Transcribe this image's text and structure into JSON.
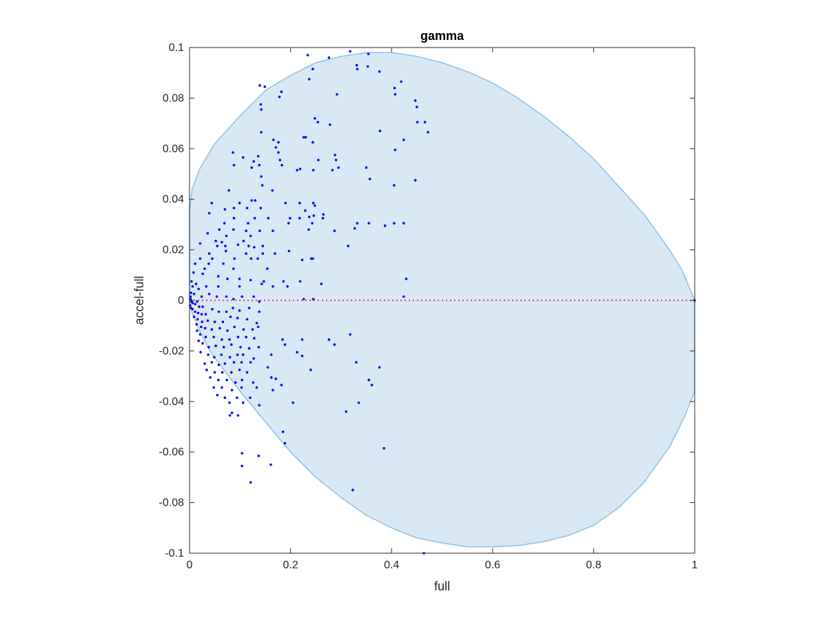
{
  "chart_data": {
    "type": "scatter",
    "title": "gamma",
    "xlabel": "full",
    "ylabel": "accel-full",
    "xlim": [
      0,
      1
    ],
    "ylim": [
      -0.1,
      0.1
    ],
    "x_ticks": [
      "0",
      "0.2",
      "0.4",
      "0.6",
      "0.8",
      "1"
    ],
    "x_tick_values": [
      0,
      0.2,
      0.4,
      0.6,
      0.8,
      1
    ],
    "y_ticks": [
      "0.1",
      "0.08",
      "0.06",
      "0.04",
      "0.02",
      "0",
      "-0.02",
      "-0.04",
      "-0.06",
      "-0.08",
      "-0.1"
    ],
    "y_tick_values": [
      0.1,
      0.08,
      0.06,
      0.04,
      0.02,
      0,
      -0.02,
      -0.04,
      -0.06,
      -0.08,
      -0.1
    ],
    "grid": false,
    "colors": {
      "points": "#0000ff",
      "region_fill": "#d8e8f4",
      "region_edge": "#8cc0e0",
      "reference_line": "#ff0000",
      "axes": "#262626"
    },
    "reference_line": {
      "y": 0,
      "style": "dotted"
    },
    "shaded_region": {
      "boundary_top": [
        [
          0,
          0.035
        ],
        [
          0.005,
          0.044
        ],
        [
          0.02,
          0.052
        ],
        [
          0.05,
          0.062
        ],
        [
          0.1,
          0.073
        ],
        [
          0.15,
          0.083
        ],
        [
          0.2,
          0.089
        ],
        [
          0.25,
          0.094
        ],
        [
          0.3,
          0.0965
        ],
        [
          0.35,
          0.098
        ],
        [
          0.4,
          0.098
        ],
        [
          0.45,
          0.0965
        ],
        [
          0.5,
          0.094
        ],
        [
          0.55,
          0.0905
        ],
        [
          0.6,
          0.086
        ],
        [
          0.65,
          0.08
        ],
        [
          0.7,
          0.073
        ],
        [
          0.75,
          0.065
        ],
        [
          0.8,
          0.056
        ],
        [
          0.85,
          0.045
        ],
        [
          0.9,
          0.034
        ],
        [
          0.95,
          0.02
        ],
        [
          0.975,
          0.012
        ],
        [
          1.0,
          0.0
        ]
      ],
      "boundary_bottom": [
        [
          1.0,
          0.0
        ],
        [
          1.0,
          -0.036
        ],
        [
          0.98,
          -0.046
        ],
        [
          0.95,
          -0.058
        ],
        [
          0.9,
          -0.072
        ],
        [
          0.85,
          -0.082
        ],
        [
          0.8,
          -0.089
        ],
        [
          0.75,
          -0.093
        ],
        [
          0.7,
          -0.0955
        ],
        [
          0.65,
          -0.097
        ],
        [
          0.6,
          -0.0975
        ],
        [
          0.55,
          -0.0975
        ],
        [
          0.5,
          -0.096
        ],
        [
          0.45,
          -0.094
        ],
        [
          0.4,
          -0.09
        ],
        [
          0.35,
          -0.085
        ],
        [
          0.3,
          -0.078
        ],
        [
          0.25,
          -0.07
        ],
        [
          0.2,
          -0.06
        ],
        [
          0.15,
          -0.048
        ],
        [
          0.1,
          -0.036
        ],
        [
          0.07,
          -0.028
        ],
        [
          0.04,
          -0.02
        ],
        [
          0.02,
          -0.012
        ],
        [
          0.005,
          -0.005
        ],
        [
          0,
          0.0
        ]
      ]
    },
    "points": [
      [
        0.234,
        0.097
      ],
      [
        0.276,
        0.096
      ],
      [
        0.318,
        0.0985
      ],
      [
        0.354,
        0.0975
      ],
      [
        0.331,
        0.093
      ],
      [
        0.332,
        0.0915
      ],
      [
        0.353,
        0.0925
      ],
      [
        0.244,
        0.0915
      ],
      [
        0.237,
        0.0875
      ],
      [
        0.376,
        0.0905
      ],
      [
        0.419,
        0.0865
      ],
      [
        0.406,
        0.084
      ],
      [
        0.407,
        0.0815
      ],
      [
        0.447,
        0.079
      ],
      [
        0.45,
        0.0765
      ],
      [
        0.139,
        0.085
      ],
      [
        0.149,
        0.0845
      ],
      [
        0.182,
        0.0825
      ],
      [
        0.178,
        0.0805
      ],
      [
        0.292,
        0.0815
      ],
      [
        0.141,
        0.0775
      ],
      [
        0.142,
        0.0755
      ],
      [
        0.248,
        0.072
      ],
      [
        0.254,
        0.0705
      ],
      [
        0.278,
        0.0695
      ],
      [
        0.466,
        0.0705
      ],
      [
        0.451,
        0.0705
      ],
      [
        0.472,
        0.0665
      ],
      [
        0.377,
        0.067
      ],
      [
        0.142,
        0.0665
      ],
      [
        0.226,
        0.0645
      ],
      [
        0.23,
        0.0645
      ],
      [
        0.424,
        0.0635
      ],
      [
        0.166,
        0.0635
      ],
      [
        0.171,
        0.0605
      ],
      [
        0.176,
        0.0625
      ],
      [
        0.244,
        0.0625
      ],
      [
        0.176,
        0.0585
      ],
      [
        0.179,
        0.0555
      ],
      [
        0.086,
        0.0585
      ],
      [
        0.136,
        0.057
      ],
      [
        0.106,
        0.0565
      ],
      [
        0.288,
        0.0575
      ],
      [
        0.29,
        0.0555
      ],
      [
        0.255,
        0.0555
      ],
      [
        0.407,
        0.0595
      ],
      [
        0.127,
        0.055
      ],
      [
        0.123,
        0.0525
      ],
      [
        0.088,
        0.0535
      ],
      [
        0.138,
        0.0535
      ],
      [
        0.183,
        0.0535
      ],
      [
        0.213,
        0.0515
      ],
      [
        0.219,
        0.052
      ],
      [
        0.245,
        0.0515
      ],
      [
        0.283,
        0.0515
      ],
      [
        0.295,
        0.0525
      ],
      [
        0.35,
        0.0525
      ],
      [
        0.357,
        0.048
      ],
      [
        0.142,
        0.049
      ],
      [
        0.144,
        0.0455
      ],
      [
        0.405,
        0.0455
      ],
      [
        0.447,
        0.0475
      ],
      [
        0.078,
        0.0435
      ],
      [
        0.164,
        0.0435
      ],
      [
        0.044,
        0.0385
      ],
      [
        0.099,
        0.0385
      ],
      [
        0.123,
        0.0395
      ],
      [
        0.13,
        0.0395
      ],
      [
        0.19,
        0.0385
      ],
      [
        0.218,
        0.0385
      ],
      [
        0.245,
        0.0385
      ],
      [
        0.248,
        0.0375
      ],
      [
        0.229,
        0.0355
      ],
      [
        0.07,
        0.036
      ],
      [
        0.088,
        0.0365
      ],
      [
        0.114,
        0.0365
      ],
      [
        0.141,
        0.0365
      ],
      [
        0.039,
        0.0345
      ],
      [
        0.088,
        0.0325
      ],
      [
        0.129,
        0.0325
      ],
      [
        0.156,
        0.0325
      ],
      [
        0.199,
        0.0325
      ],
      [
        0.218,
        0.0325
      ],
      [
        0.246,
        0.0335
      ],
      [
        0.237,
        0.033
      ],
      [
        0.264,
        0.0325
      ],
      [
        0.265,
        0.034
      ],
      [
        0.069,
        0.0305
      ],
      [
        0.116,
        0.0305
      ],
      [
        0.196,
        0.0305
      ],
      [
        0.243,
        0.0305
      ],
      [
        0.332,
        0.0305
      ],
      [
        0.355,
        0.0305
      ],
      [
        0.387,
        0.0295
      ],
      [
        0.405,
        0.0305
      ],
      [
        0.424,
        0.0305
      ],
      [
        0.059,
        0.028
      ],
      [
        0.087,
        0.028
      ],
      [
        0.112,
        0.0275
      ],
      [
        0.139,
        0.0275
      ],
      [
        0.165,
        0.0275
      ],
      [
        0.236,
        0.028
      ],
      [
        0.287,
        0.0275
      ],
      [
        0.327,
        0.0285
      ],
      [
        0.036,
        0.0265
      ],
      [
        0.073,
        0.0255
      ],
      [
        0.121,
        0.0255
      ],
      [
        0.052,
        0.0235
      ],
      [
        0.064,
        0.023
      ],
      [
        0.096,
        0.022
      ],
      [
        0.107,
        0.0235
      ],
      [
        0.021,
        0.0225
      ],
      [
        0.055,
        0.0215
      ],
      [
        0.071,
        0.0215
      ],
      [
        0.117,
        0.0215
      ],
      [
        0.128,
        0.021
      ],
      [
        0.314,
        0.0215
      ],
      [
        0.145,
        0.0215
      ],
      [
        0.197,
        0.0195
      ],
      [
        0.241,
        0.0165
      ],
      [
        0.039,
        0.0185
      ],
      [
        0.072,
        0.0195
      ],
      [
        0.112,
        0.0185
      ],
      [
        0.145,
        0.0185
      ],
      [
        0.169,
        0.0185
      ],
      [
        0.244,
        0.0165
      ],
      [
        0.021,
        0.0165
      ],
      [
        0.045,
        0.0165
      ],
      [
        0.089,
        0.0165
      ],
      [
        0.122,
        0.0165
      ],
      [
        0.135,
        0.0165
      ],
      [
        0.223,
        0.016
      ],
      [
        0.011,
        0.0145
      ],
      [
        0.038,
        0.0145
      ],
      [
        0.067,
        0.0145
      ],
      [
        0.154,
        0.0125
      ],
      [
        0.087,
        0.0125
      ],
      [
        0.03,
        0.0125
      ],
      [
        0.008,
        0.011
      ],
      [
        0.026,
        0.0105
      ],
      [
        0.057,
        0.0095
      ],
      [
        0.075,
        0.0085
      ],
      [
        0.099,
        0.0085
      ],
      [
        0.121,
        0.008
      ],
      [
        0.147,
        0.0075
      ],
      [
        0.186,
        0.0075
      ],
      [
        0.219,
        0.0075
      ],
      [
        0.261,
        0.0065
      ],
      [
        0.429,
        0.0085
      ],
      [
        0.143,
        0.0065
      ],
      [
        0.165,
        0.0055
      ],
      [
        0.194,
        0.0055
      ],
      [
        0.099,
        0.0055
      ],
      [
        0.057,
        0.0055
      ],
      [
        0.033,
        0.0055
      ],
      [
        0.013,
        0.0065
      ],
      [
        0.004,
        0.0075
      ],
      [
        0.006,
        0.0055
      ],
      [
        0.018,
        0.0045
      ],
      [
        0.003,
        0.003
      ],
      [
        0.009,
        0.0025
      ],
      [
        0.024,
        0.0015
      ],
      [
        0.039,
        0.0025
      ],
      [
        0.054,
        0.0015
      ],
      [
        0.073,
        0.0015
      ],
      [
        0.087,
        0.0005
      ],
      [
        0.104,
        0.0015
      ],
      [
        0.127,
        0.0015
      ],
      [
        0.424,
        0.0015
      ],
      [
        0.226,
        0.0005
      ],
      [
        0.245,
        0.0005
      ],
      [
        0.138,
        -0.0005
      ],
      [
        0.002,
        0.0015
      ],
      [
        0.002,
        0.0005
      ],
      [
        0.004,
        -0.0005
      ],
      [
        0.006,
        -0.001
      ],
      [
        0.011,
        -0.0015
      ],
      [
        0.015,
        -0.0005
      ],
      [
        0.019,
        -0.0025
      ],
      [
        0.026,
        -0.0025
      ],
      [
        0.001,
        -0.002
      ],
      [
        0.003,
        -0.003
      ],
      [
        0.006,
        -0.0035
      ],
      [
        0.011,
        -0.0045
      ],
      [
        0.017,
        -0.005
      ],
      [
        0.024,
        -0.0055
      ],
      [
        0.032,
        -0.0055
      ],
      [
        0.045,
        -0.0035
      ],
      [
        0.058,
        -0.0045
      ],
      [
        0.073,
        -0.0045
      ],
      [
        0.086,
        -0.003
      ],
      [
        0.099,
        -0.004
      ],
      [
        0.118,
        -0.003
      ],
      [
        0.138,
        -0.0045
      ],
      [
        0.009,
        -0.0065
      ],
      [
        0.016,
        -0.0075
      ],
      [
        0.025,
        -0.0085
      ],
      [
        0.036,
        -0.008
      ],
      [
        0.05,
        -0.0085
      ],
      [
        0.066,
        -0.0085
      ],
      [
        0.081,
        -0.0065
      ],
      [
        0.095,
        -0.007
      ],
      [
        0.114,
        -0.0075
      ],
      [
        0.133,
        -0.009
      ],
      [
        0.014,
        -0.0095
      ],
      [
        0.023,
        -0.0105
      ],
      [
        0.031,
        -0.011
      ],
      [
        0.044,
        -0.0115
      ],
      [
        0.06,
        -0.011
      ],
      [
        0.075,
        -0.012
      ],
      [
        0.089,
        -0.0105
      ],
      [
        0.107,
        -0.0115
      ],
      [
        0.125,
        -0.0115
      ],
      [
        0.136,
        -0.0105
      ],
      [
        0.015,
        -0.012
      ],
      [
        0.021,
        -0.0135
      ],
      [
        0.032,
        -0.0145
      ],
      [
        0.048,
        -0.0145
      ],
      [
        0.064,
        -0.0155
      ],
      [
        0.079,
        -0.0155
      ],
      [
        0.096,
        -0.0145
      ],
      [
        0.112,
        -0.0145
      ],
      [
        0.128,
        -0.015
      ],
      [
        0.018,
        -0.016
      ],
      [
        0.026,
        -0.017
      ],
      [
        0.038,
        -0.0185
      ],
      [
        0.052,
        -0.018
      ],
      [
        0.068,
        -0.0185
      ],
      [
        0.083,
        -0.0175
      ],
      [
        0.101,
        -0.0185
      ],
      [
        0.118,
        -0.019
      ],
      [
        0.137,
        -0.0185
      ],
      [
        0.184,
        -0.0155
      ],
      [
        0.189,
        -0.0175
      ],
      [
        0.223,
        -0.0155
      ],
      [
        0.276,
        -0.0155
      ],
      [
        0.318,
        -0.0135
      ],
      [
        0.022,
        -0.0205
      ],
      [
        0.037,
        -0.0215
      ],
      [
        0.049,
        -0.0225
      ],
      [
        0.063,
        -0.0215
      ],
      [
        0.08,
        -0.0225
      ],
      [
        0.095,
        -0.0215
      ],
      [
        0.106,
        -0.0215
      ],
      [
        0.127,
        -0.023
      ],
      [
        0.162,
        -0.0215
      ],
      [
        0.213,
        -0.0205
      ],
      [
        0.287,
        -0.0175
      ],
      [
        0.03,
        -0.025
      ],
      [
        0.044,
        -0.0245
      ],
      [
        0.058,
        -0.0255
      ],
      [
        0.07,
        -0.025
      ],
      [
        0.088,
        -0.0245
      ],
      [
        0.103,
        -0.0245
      ],
      [
        0.121,
        -0.0245
      ],
      [
        0.223,
        -0.022
      ],
      [
        0.034,
        -0.0275
      ],
      [
        0.05,
        -0.0285
      ],
      [
        0.065,
        -0.0285
      ],
      [
        0.083,
        -0.0285
      ],
      [
        0.099,
        -0.0275
      ],
      [
        0.114,
        -0.0285
      ],
      [
        0.155,
        -0.0265
      ],
      [
        0.24,
        -0.0275
      ],
      [
        0.33,
        -0.0245
      ],
      [
        0.376,
        -0.0265
      ],
      [
        0.041,
        -0.0305
      ],
      [
        0.057,
        -0.0315
      ],
      [
        0.074,
        -0.0315
      ],
      [
        0.091,
        -0.0325
      ],
      [
        0.104,
        -0.0315
      ],
      [
        0.126,
        -0.0325
      ],
      [
        0.162,
        -0.0305
      ],
      [
        0.171,
        -0.031
      ],
      [
        0.355,
        -0.0315
      ],
      [
        0.361,
        -0.0335
      ],
      [
        0.048,
        -0.0345
      ],
      [
        0.064,
        -0.0345
      ],
      [
        0.084,
        -0.0355
      ],
      [
        0.103,
        -0.0345
      ],
      [
        0.133,
        -0.0345
      ],
      [
        0.165,
        -0.0355
      ],
      [
        0.182,
        -0.0335
      ],
      [
        0.055,
        -0.0375
      ],
      [
        0.07,
        -0.0385
      ],
      [
        0.094,
        -0.0385
      ],
      [
        0.12,
        -0.0385
      ],
      [
        0.079,
        -0.0405
      ],
      [
        0.106,
        -0.0405
      ],
      [
        0.138,
        -0.0415
      ],
      [
        0.205,
        -0.0405
      ],
      [
        0.335,
        -0.0405
      ],
      [
        0.31,
        -0.044
      ],
      [
        0.084,
        -0.0445
      ],
      [
        0.096,
        -0.0455
      ],
      [
        0.08,
        -0.0455
      ],
      [
        0.185,
        -0.052
      ],
      [
        0.189,
        -0.0565
      ],
      [
        0.385,
        -0.0585
      ],
      [
        0.104,
        -0.0605
      ],
      [
        0.137,
        -0.0615
      ],
      [
        0.161,
        -0.065
      ],
      [
        0.104,
        -0.0655
      ],
      [
        0.121,
        -0.072
      ],
      [
        0.323,
        -0.075
      ],
      [
        0.464,
        -0.1
      ],
      [
        1.0,
        0.0
      ]
    ]
  }
}
